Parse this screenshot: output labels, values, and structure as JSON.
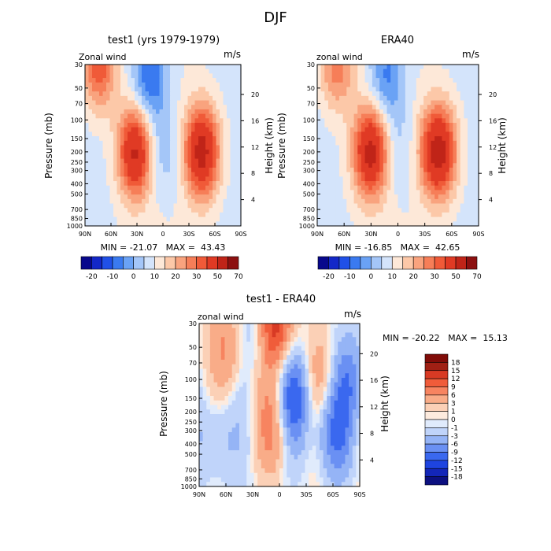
{
  "figure": {
    "title": "DJF"
  },
  "chart_data": [
    {
      "type": "heatmap",
      "title": "test1 (yrs 1979-1979)",
      "left_label": "Zonal wind",
      "units": "m/s",
      "ylabel": "Pressure (mb)",
      "ylabel_right": "Height (km)",
      "x_ticks": [
        "90N",
        "60N",
        "30N",
        "0",
        "30S",
        "60S",
        "90S"
      ],
      "y_ticks": [
        "30",
        "50",
        "70",
        "100",
        "150",
        "200",
        "250",
        "300",
        "400",
        "500",
        "700",
        "850",
        "1000"
      ],
      "height_ticks": [
        "20",
        "16",
        "12",
        "8",
        "4"
      ],
      "stats": "MIN = -21.07   MAX =  43.43",
      "min": -21.07,
      "max": 43.43,
      "colorbar_labels": [
        "-20",
        "-10",
        "0",
        "10",
        "20",
        "30",
        "50",
        "70"
      ],
      "levels": [
        -25,
        -20,
        -15,
        -10,
        -5,
        0,
        5,
        10,
        15,
        20,
        25,
        30,
        40,
        50,
        60,
        70
      ],
      "features": [
        {
          "lat": 32,
          "p": 200,
          "value": 38
        },
        {
          "lat": -45,
          "p": 200,
          "value": 40
        },
        {
          "lat": 74,
          "p": 30,
          "value": 26
        },
        {
          "lat": 15,
          "p": 40,
          "value": -21
        },
        {
          "lat": 2,
          "p": 200,
          "value": -10
        }
      ]
    },
    {
      "type": "heatmap",
      "title": "ERA40",
      "left_label": "zonal wind",
      "units": "m/s",
      "ylabel": "Pressure (mb)",
      "ylabel_right": "Height (km)",
      "x_ticks": [
        "90N",
        "60N",
        "30N",
        "0",
        "30S",
        "60S",
        "90S"
      ],
      "y_ticks": [
        "30",
        "50",
        "70",
        "100",
        "150",
        "200",
        "250",
        "300",
        "400",
        "500",
        "700",
        "850",
        "1000"
      ],
      "height_ticks": [
        "20",
        "16",
        "12",
        "8",
        "4"
      ],
      "stats": "MIN = -16.85   MAX =  42.65",
      "min": -16.85,
      "max": 42.65,
      "colorbar_labels": [
        "-20",
        "-10",
        "0",
        "10",
        "20",
        "30",
        "50",
        "70"
      ],
      "levels": [
        -25,
        -20,
        -15,
        -10,
        -5,
        0,
        5,
        10,
        15,
        20,
        25,
        30,
        40,
        50,
        60,
        70
      ],
      "features": [
        {
          "lat": 30,
          "p": 200,
          "value": 40
        },
        {
          "lat": -45,
          "p": 200,
          "value": 42
        },
        {
          "lat": 68,
          "p": 30,
          "value": 20
        },
        {
          "lat": 12,
          "p": 40,
          "value": -17
        },
        {
          "lat": 2,
          "p": 200,
          "value": -8
        }
      ]
    },
    {
      "type": "heatmap",
      "title": "test1 - ERA40",
      "left_label": "zonal wind",
      "units": "m/s",
      "ylabel": "Pressure (mb)",
      "ylabel_right": "Height (km)",
      "x_ticks": [
        "90N",
        "60N",
        "30N",
        "0",
        "30S",
        "60S",
        "90S"
      ],
      "y_ticks": [
        "30",
        "50",
        "70",
        "100",
        "150",
        "200",
        "250",
        "300",
        "400",
        "500",
        "700",
        "850",
        "1000"
      ],
      "height_ticks": [
        "20",
        "16",
        "12",
        "8",
        "4"
      ],
      "stats": "MIN = -20.22   MAX =  15.13",
      "min": -20.22,
      "max": 15.13,
      "colorbar_labels": [
        "18",
        "15",
        "12",
        "9",
        "6",
        "3",
        "1",
        "0",
        "-1",
        "-3",
        "-6",
        "-9",
        "-12",
        "-15",
        "-18"
      ],
      "levels": [
        -18,
        -15,
        -12,
        -9,
        -6,
        -3,
        -1,
        0,
        1,
        3,
        6,
        9,
        12,
        15,
        18
      ],
      "features": [
        {
          "lat": 6,
          "p": 30,
          "value": 15
        },
        {
          "lat": 6,
          "p": 250,
          "value": 7
        },
        {
          "lat": -45,
          "p": 100,
          "value": 5
        },
        {
          "lat": -15,
          "p": 150,
          "value": -12
        },
        {
          "lat": 25,
          "p": 30,
          "value": -5
        },
        {
          "lat": -60,
          "p": 300,
          "value": -9
        },
        {
          "lat": -78,
          "p": 100,
          "value": -7
        },
        {
          "lat": 70,
          "p": 350,
          "value": -5
        },
        {
          "lat": 60,
          "p": 50,
          "value": 6
        }
      ]
    }
  ],
  "colors": {
    "main_scale": [
      "#08088c",
      "#1328c8",
      "#2050e8",
      "#3a7af0",
      "#6aa2f5",
      "#a4c6f8",
      "#d4e4fb",
      "#fde8d8",
      "#fcc8a8",
      "#f9a37e",
      "#f67e58",
      "#f05a38",
      "#e03a24",
      "#c02418",
      "#8c1010"
    ],
    "diff_scale": [
      "#0c1080",
      "#1326b8",
      "#1e44e0",
      "#3a68ef",
      "#6a90f3",
      "#95b4f6",
      "#c0d4fa",
      "#e0ebfc",
      "#fdebde",
      "#fbd0b6",
      "#f9ac88",
      "#f78460",
      "#f05c3a",
      "#d83a24",
      "#a02014",
      "#800c08"
    ]
  }
}
